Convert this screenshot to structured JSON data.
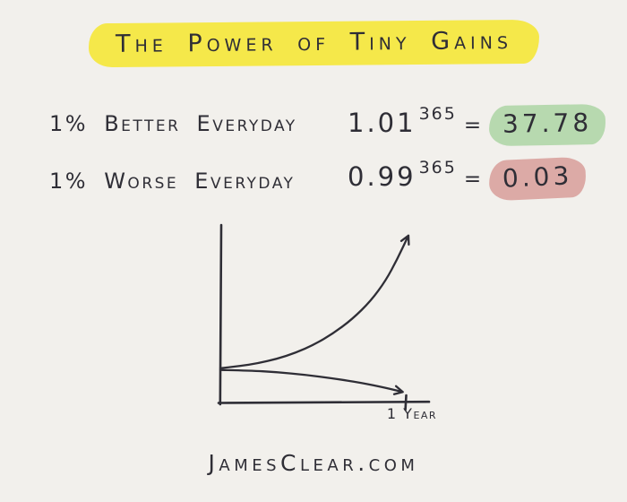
{
  "page": {
    "background": "#f2f0ec",
    "ink": "#2f2e36"
  },
  "title": {
    "text": "The Power of Tiny Gains",
    "highlight_color": "#f5e84a"
  },
  "rows": [
    {
      "label": "1% Better Everyday",
      "base": "1.01",
      "exponent": "365",
      "equals": "=",
      "result": "37.78",
      "result_highlight": "#b7d9af"
    },
    {
      "label": "1% Worse Everyday",
      "base": "0.99",
      "exponent": "365",
      "equals": "=",
      "result": "0.03",
      "result_highlight": "#dcaaa6"
    }
  ],
  "footer": {
    "text": "JamesClear.com"
  },
  "chart_data": {
    "type": "line",
    "title": "The Power of Tiny Gains",
    "xlabel": "1 Year",
    "ylabel": "",
    "x_tick_labels": [
      "1 Year"
    ],
    "axes": {
      "x_range_days": [
        0,
        365
      ],
      "grid": false,
      "style": "hand-drawn"
    },
    "key_values": {
      "daily_change_pct": 1,
      "better_final": 37.78,
      "worse_final": 0.03
    },
    "series": [
      {
        "name": "1% better every day (1.01^365 = 37.78)",
        "trend": "exponential-growth",
        "arrow_end": true,
        "points_norm": [
          [
            0,
            0.195
          ],
          [
            0.1,
            0.207
          ],
          [
            0.2,
            0.223
          ],
          [
            0.3,
            0.248
          ],
          [
            0.4,
            0.283
          ],
          [
            0.5,
            0.33
          ],
          [
            0.6,
            0.393
          ],
          [
            0.7,
            0.473
          ],
          [
            0.8,
            0.578
          ],
          [
            0.88,
            0.695
          ],
          [
            0.94,
            0.815
          ],
          [
            1.0,
            0.95
          ]
        ]
      },
      {
        "name": "1% worse every day (0.99^365 = 0.03)",
        "trend": "exponential-decay",
        "arrow_end": true,
        "points_norm": [
          [
            0,
            0.185
          ],
          [
            0.15,
            0.182
          ],
          [
            0.3,
            0.173
          ],
          [
            0.45,
            0.158
          ],
          [
            0.6,
            0.137
          ],
          [
            0.75,
            0.112
          ],
          [
            0.88,
            0.083
          ],
          [
            0.97,
            0.06
          ]
        ]
      }
    ]
  }
}
